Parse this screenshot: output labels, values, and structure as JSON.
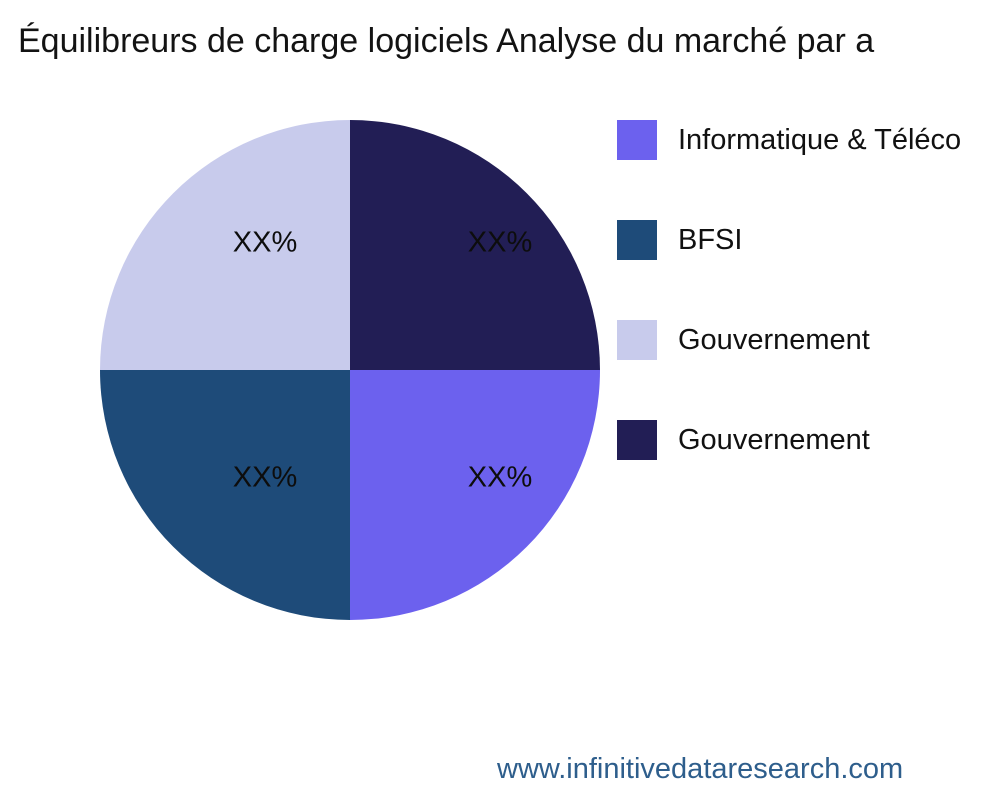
{
  "title": "Équilibreurs de charge logiciels Analyse du marché par a",
  "footer": {
    "url": "www.infinitivedataresearch.com"
  },
  "legend": {
    "items": [
      {
        "label": "Informatique & Téléco",
        "color": "#6c61ee"
      },
      {
        "label": "BFSI",
        "color": "#1e4b79"
      },
      {
        "label": "Gouvernement",
        "color": "#c8cbec"
      },
      {
        "label": "Gouvernement",
        "color": "#221e55"
      }
    ]
  },
  "chart_data": {
    "type": "pie",
    "title": "Équilibreurs de charge logiciels Analyse du marché par a",
    "start_angle_deg": 0,
    "direction": "clockwise",
    "legend_position": "right",
    "slices": [
      {
        "legend_label": "Gouvernement",
        "value": 25,
        "value_label": "XX%",
        "color": "#221e55",
        "quadrant": "top-right"
      },
      {
        "legend_label": "Informatique & Téléco",
        "value": 25,
        "value_label": "XX%",
        "color": "#6c61ee",
        "quadrant": "bottom-right"
      },
      {
        "legend_label": "BFSI",
        "value": 25,
        "value_label": "XX%",
        "color": "#1e4b79",
        "quadrant": "bottom-left"
      },
      {
        "legend_label": "Gouvernement",
        "value": 25,
        "value_label": "XX%",
        "color": "#c8cbec",
        "quadrant": "top-left"
      }
    ]
  }
}
